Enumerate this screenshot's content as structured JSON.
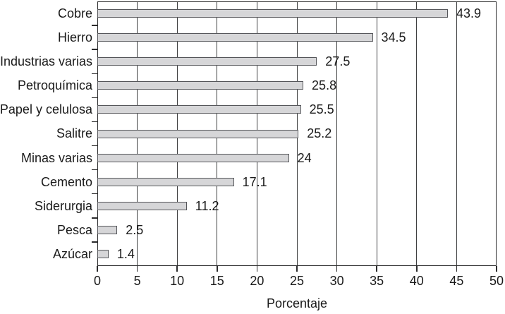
{
  "chart_data": {
    "type": "bar",
    "orientation": "horizontal",
    "title": "",
    "xlabel": "Porcentaje",
    "ylabel": "",
    "xlim": [
      0,
      50
    ],
    "xticks": [
      0,
      5,
      10,
      15,
      20,
      25,
      30,
      35,
      40,
      45,
      50
    ],
    "xtick_labels": [
      "0",
      "5",
      "10",
      "15",
      "20",
      "25",
      "30",
      "35",
      "40",
      "45",
      "50"
    ],
    "categories": [
      "Cobre",
      "Hierro",
      "Industrias varias",
      "Petroquímica",
      "Papel y celulosa",
      "Salitre",
      "Minas varias",
      "Cemento",
      "Siderurgia",
      "Pesca",
      "Azúcar"
    ],
    "values": [
      43.9,
      34.5,
      27.5,
      25.8,
      25.5,
      25.2,
      24,
      17.1,
      11.2,
      2.5,
      1.4
    ],
    "value_labels": [
      "43.9",
      "34.5",
      "27.5",
      "25.8",
      "25.5",
      "25.2",
      "24",
      "17.1",
      "11.2",
      "2.5",
      "1.4"
    ],
    "grid": "vertical gridlines at every x tick",
    "legend": "none",
    "colors": {
      "bar_fill": "#d6d6d8",
      "bar_border": "#55565a",
      "gridline": "#3f4041",
      "axis": "#2b2b2c",
      "text": "#1a1a1a",
      "background": "#ffffff"
    }
  }
}
